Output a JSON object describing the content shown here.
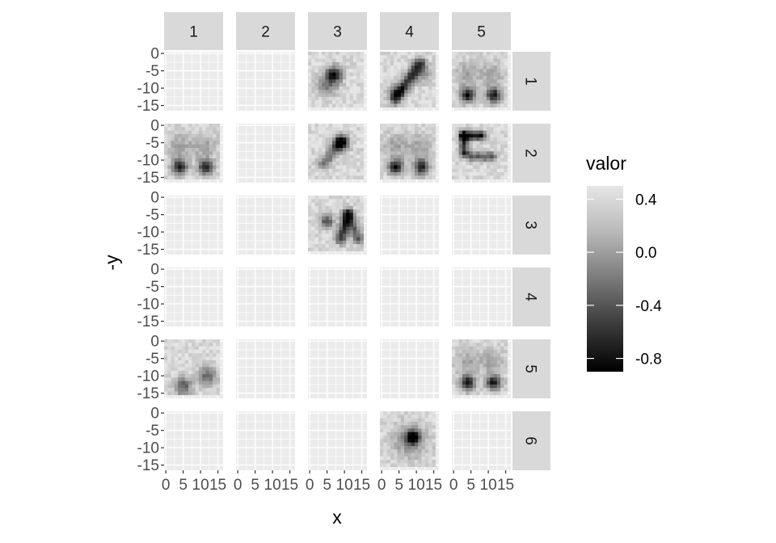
{
  "chart_data": {
    "type": "heatmap",
    "facet_cols": [
      "1",
      "2",
      "3",
      "4",
      "5"
    ],
    "facet_rows": [
      "1",
      "2",
      "3",
      "4",
      "5",
      "6"
    ],
    "xlabel": "x",
    "ylabel": "-y",
    "x_ticks": [
      "0",
      "5",
      "10",
      "15"
    ],
    "x_tick_values": [
      0,
      5,
      10,
      15
    ],
    "y_ticks": [
      "0",
      "-5",
      "-10",
      "-15"
    ],
    "y_tick_values": [
      0,
      -5,
      -10,
      -15
    ],
    "xlim": [
      -0.5,
      16.5
    ],
    "ylim": [
      -16.5,
      0.5
    ],
    "grid_size": 16,
    "legend": {
      "title": "valor",
      "labels": [
        "0.4",
        "0.0",
        "-0.4",
        "-0.8"
      ],
      "values": [
        0.4,
        0.0,
        -0.4,
        -0.8
      ],
      "range": [
        -0.9,
        0.5
      ],
      "placement": "right",
      "colors": [
        "#000000",
        "#3a3a3a",
        "#7a7a7a",
        "#b8b8b8",
        "#e6e6e6"
      ]
    },
    "panels": [
      {
        "row": "1",
        "col": "3",
        "pattern": "center-blob"
      },
      {
        "row": "1",
        "col": "4",
        "pattern": "diagonal-stroke"
      },
      {
        "row": "1",
        "col": "5",
        "pattern": "two-blobs-bottom"
      },
      {
        "row": "2",
        "col": "1",
        "pattern": "two-blobs-bottom"
      },
      {
        "row": "2",
        "col": "3",
        "pattern": "upper-center-blob"
      },
      {
        "row": "2",
        "col": "4",
        "pattern": "two-blobs-bottom"
      },
      {
        "row": "2",
        "col": "5",
        "pattern": "horizontal-strokes"
      },
      {
        "row": "3",
        "col": "3",
        "pattern": "triangle-strokes"
      },
      {
        "row": "5",
        "col": "1",
        "pattern": "faint-bottom"
      },
      {
        "row": "5",
        "col": "5",
        "pattern": "two-blobs-bottom"
      },
      {
        "row": "6",
        "col": "4",
        "pattern": "center-dot"
      }
    ]
  }
}
